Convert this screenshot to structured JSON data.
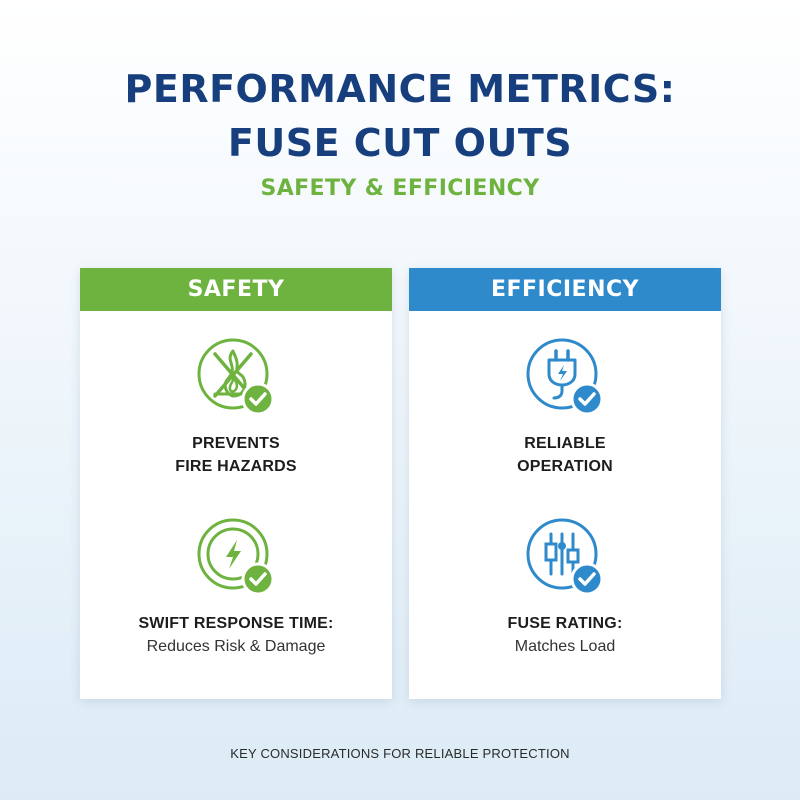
{
  "header": {
    "title_line1": "PERFORMANCE METRICS:",
    "title_line2": "FUSE CUT OUTS",
    "subtitle": "SAFETY & EFFICIENCY"
  },
  "colors": {
    "title": "#173f7d",
    "safety_green": "#6eb33f",
    "efficiency_blue": "#2e8acb"
  },
  "safety": {
    "header": "SAFETY",
    "items": [
      {
        "icon": "no-fire-icon",
        "title_line1": "PREVENTS",
        "title_line2": "FIRE HAZARDS",
        "subtitle": ""
      },
      {
        "icon": "lightning-bolt-icon",
        "title_line1": "SWIFT RESPONSE TIME:",
        "title_line2": "",
        "subtitle": "Reduces Risk & Damage"
      }
    ]
  },
  "efficiency": {
    "header": "EFFICIENCY",
    "items": [
      {
        "icon": "power-plug-icon",
        "title_line1": "RELIABLE",
        "title_line2": "OPERATION",
        "subtitle": ""
      },
      {
        "icon": "fuse-rating-icon",
        "title_line1": "FUSE RATING:",
        "title_line2": "",
        "subtitle": "Matches Load"
      }
    ]
  },
  "footer": {
    "text": "KEY CONSIDERATIONS FOR RELIABLE PROTECTION"
  }
}
